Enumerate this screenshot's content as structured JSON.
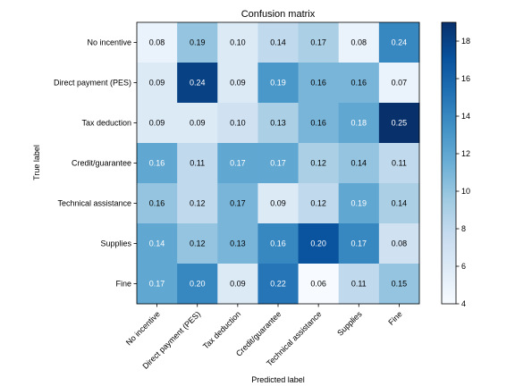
{
  "chart_data": {
    "type": "heatmap",
    "title": "Confusion matrix",
    "xlabel": "Predicted label",
    "ylabel": "True label",
    "row_labels": [
      "No incentive",
      "Direct payment (PES)",
      "Tax deduction",
      "Credit/guarantee",
      "Technical assistance",
      "Supplies",
      "Fine"
    ],
    "col_labels": [
      "No incentive",
      "Direct payment (PES)",
      "Tax deduction",
      "Credit/guarantee",
      "Technical assistance",
      "Supplies",
      "Fine"
    ],
    "values": [
      [
        0.08,
        0.19,
        0.1,
        0.14,
        0.17,
        0.08,
        0.24
      ],
      [
        0.09,
        0.24,
        0.09,
        0.19,
        0.16,
        0.16,
        0.07
      ],
      [
        0.09,
        0.09,
        0.1,
        0.13,
        0.16,
        0.18,
        0.25
      ],
      [
        0.16,
        0.11,
        0.17,
        0.17,
        0.12,
        0.14,
        0.11
      ],
      [
        0.16,
        0.12,
        0.17,
        0.09,
        0.12,
        0.19,
        0.14
      ],
      [
        0.14,
        0.12,
        0.13,
        0.16,
        0.2,
        0.17,
        0.08
      ],
      [
        0.17,
        0.2,
        0.09,
        0.22,
        0.06,
        0.11,
        0.15
      ]
    ],
    "counts": [
      [
        5,
        10,
        6,
        8,
        9,
        5,
        14
      ],
      [
        6,
        18,
        6,
        13,
        11,
        11,
        5
      ],
      [
        6,
        6,
        7,
        9,
        11,
        12,
        19
      ],
      [
        12,
        8,
        12,
        12,
        9,
        10,
        8
      ],
      [
        10,
        8,
        11,
        6,
        8,
        12,
        9
      ],
      [
        12,
        10,
        11,
        14,
        17,
        14,
        7
      ],
      [
        12,
        14,
        6,
        15,
        4,
        8,
        10
      ]
    ],
    "colorbar": {
      "range": [
        4,
        19
      ],
      "ticks": [
        "4",
        "6",
        "8",
        "10",
        "12",
        "14",
        "16",
        "18"
      ],
      "colormap": "Blues"
    },
    "colors": {
      "low": "#f7fbff",
      "high": "#08306b",
      "text_dark": "#000000",
      "text_light": "#ffffff"
    }
  }
}
